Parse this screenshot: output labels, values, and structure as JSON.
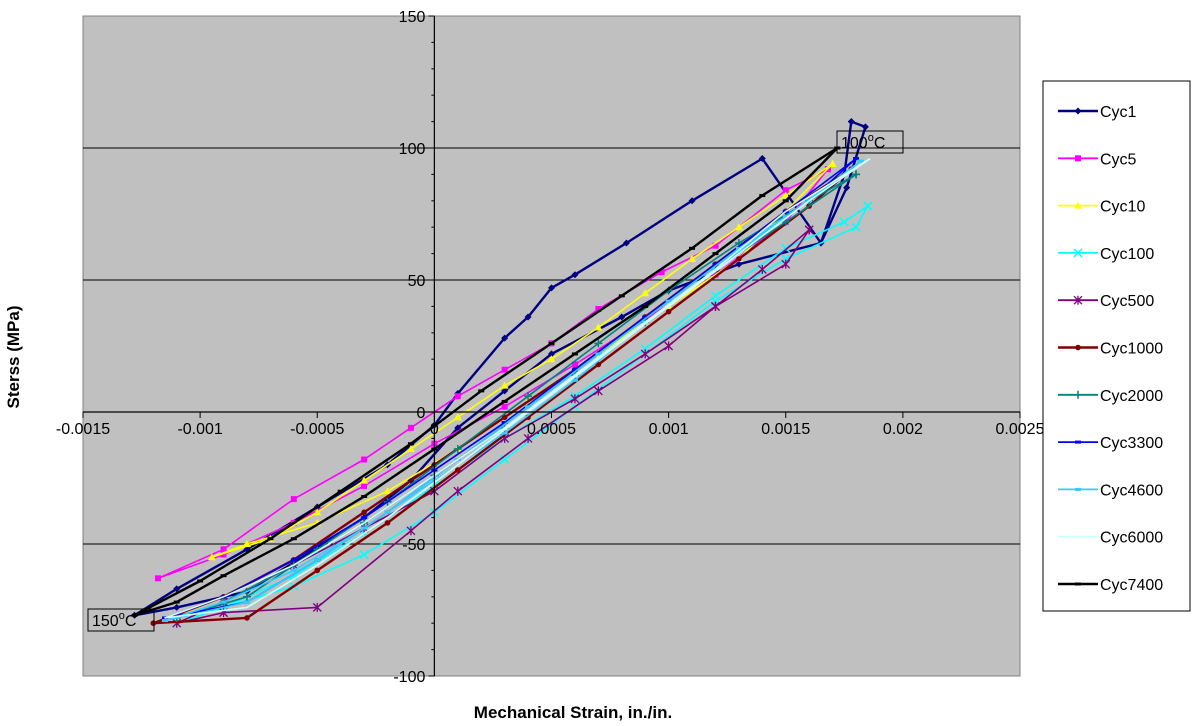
{
  "chart_data": {
    "type": "line",
    "xlabel": "Mechanical Strain, in./in.",
    "ylabel": "Sterss (MPa)",
    "xlim": [
      -0.0015,
      0.0025
    ],
    "ylim": [
      -100,
      150
    ],
    "xticks": [
      "-0.0015",
      "-0.001",
      "-0.0005",
      "0",
      "0.0005",
      "0.001",
      "0.0015",
      "0.002",
      "0.0025"
    ],
    "yticks": [
      "150",
      "100",
      "50",
      "0",
      "-50",
      "-100"
    ],
    "grid": true,
    "legend_position": "right",
    "plot_background": "#c0c0c0",
    "annotations": [
      {
        "label": "100",
        "sup": "o",
        "unit": "C",
        "x": 0.0018,
        "y": 104
      },
      {
        "label": "150",
        "sup": "o",
        "unit": "C",
        "x": -0.0013,
        "y": -79
      }
    ],
    "series": [
      {
        "name": "Cyc1",
        "color": "#000080",
        "marker": "diamond",
        "x": [
          0.00178,
          0.00184,
          0.00176,
          0.00165,
          0.0014,
          0.0011,
          0.00082,
          0.0006,
          0.0005,
          0.0004,
          0.0003,
          0.0001,
          0.0,
          -0.0002,
          -0.0005,
          -0.0008,
          -0.0011,
          -0.00128,
          -0.0011,
          -0.0008,
          -0.0006,
          -0.0003,
          -0.0001,
          0.0001,
          0.0003,
          0.0005,
          0.0008,
          0.001,
          0.0013,
          0.00165,
          0.00175,
          0.00178
        ],
        "y": [
          110,
          108,
          85,
          64,
          96,
          80,
          64,
          52,
          47,
          36,
          28,
          7,
          -5,
          -20,
          -36,
          -52,
          -67,
          -77,
          -74,
          -68,
          -57,
          -40,
          -26,
          -6,
          8,
          22,
          36,
          46,
          56,
          64,
          90,
          110
        ]
      },
      {
        "name": "Cyc5",
        "color": "#ff00ff",
        "marker": "square",
        "x": [
          0.00168,
          0.0015,
          0.0012,
          0.00097,
          0.0007,
          0.0005,
          0.0003,
          0.0001,
          -0.0001,
          -0.0003,
          -0.0006,
          -0.0009,
          -0.00118,
          -0.0009,
          -0.0006,
          -0.0003,
          0.0,
          0.0003,
          0.0006,
          0.0009,
          0.0012,
          0.0015,
          0.00168
        ],
        "y": [
          92,
          84,
          63,
          53,
          39,
          26,
          16,
          6,
          -6,
          -18,
          -33,
          -52,
          -63,
          -54,
          -42,
          -28,
          -12,
          2,
          18,
          35,
          52,
          72,
          92
        ]
      },
      {
        "name": "Cyc10",
        "color": "#ffff00",
        "marker": "triangle",
        "x": [
          0.0017,
          0.0015,
          0.0013,
          0.0011,
          0.0009,
          0.0007,
          0.0005,
          0.0003,
          0.0001,
          -0.0001,
          -0.0003,
          -0.0005,
          -0.0007,
          -0.00095,
          -0.0008,
          -0.0005,
          -0.0002,
          0.0001,
          0.0004,
          0.0007,
          0.001,
          0.0013,
          0.0017
        ],
        "y": [
          94,
          82,
          70,
          58,
          45,
          32,
          20,
          10,
          -2,
          -14,
          -26,
          -38,
          -48,
          -55,
          -50,
          -42,
          -30,
          -14,
          4,
          22,
          40,
          58,
          94
        ]
      },
      {
        "name": "Cyc100",
        "color": "#00ffff",
        "marker": "x",
        "x": [
          0.00185,
          0.0018,
          0.0015,
          0.0012,
          0.0009,
          0.0006,
          0.0003,
          0.0,
          -0.0003,
          -0.0006,
          -0.0009,
          -0.0011,
          -0.0009,
          -0.0006,
          -0.0003,
          0.0,
          0.0003,
          0.0006,
          0.0009,
          0.0012,
          0.0015,
          0.00175,
          0.00185
        ],
        "y": [
          78,
          70,
          58,
          42,
          22,
          2,
          -18,
          -38,
          -54,
          -66,
          -74,
          -80,
          -74,
          -62,
          -46,
          -28,
          -10,
          6,
          24,
          44,
          62,
          72,
          78
        ]
      },
      {
        "name": "Cyc500",
        "color": "#800080",
        "marker": "star",
        "x": [
          0.0016,
          0.0014,
          0.0012,
          0.001,
          0.0007,
          0.0004,
          0.0001,
          -0.0001,
          -0.0005,
          -0.0009,
          -0.0011,
          -0.0009,
          -0.0006,
          -0.0003,
          0.0,
          0.0003,
          0.0006,
          0.0009,
          0.0012,
          0.0015,
          0.0016
        ],
        "y": [
          69,
          54,
          40,
          25,
          8,
          -10,
          -30,
          -45,
          -74,
          -76,
          -80,
          -72,
          -58,
          -44,
          -30,
          -10,
          5,
          22,
          40,
          56,
          69
        ]
      },
      {
        "name": "Cyc1000",
        "color": "#800000",
        "marker": "circle",
        "x": [
          0.00178,
          0.0015,
          0.0012,
          0.0009,
          0.0006,
          0.0003,
          0.0,
          -0.0003,
          -0.0006,
          -0.0009,
          -0.0012,
          -0.0008,
          -0.0005,
          -0.0002,
          0.0001,
          0.0004,
          0.0007,
          0.001,
          0.0013,
          0.0016,
          0.00178
        ],
        "y": [
          92,
          76,
          56,
          36,
          16,
          -2,
          -20,
          -38,
          -56,
          -70,
          -80,
          -78,
          -60,
          -42,
          -22,
          -2,
          18,
          38,
          58,
          78,
          92
        ]
      },
      {
        "name": "Cyc2000",
        "color": "#008080",
        "marker": "plus",
        "x": [
          0.0018,
          0.0015,
          0.0012,
          0.0009,
          0.0006,
          0.0003,
          0.0,
          -0.0003,
          -0.0006,
          -0.0009,
          -0.0011,
          -0.0008,
          -0.0005,
          -0.0002,
          0.0001,
          0.0004,
          0.0007,
          0.001,
          0.0013,
          0.0016,
          0.0018
        ],
        "y": [
          90,
          72,
          54,
          34,
          14,
          -6,
          -24,
          -42,
          -58,
          -72,
          -78,
          -70,
          -52,
          -34,
          -14,
          6,
          26,
          46,
          64,
          80,
          90
        ]
      },
      {
        "name": "Cyc3300",
        "color": "#0000ff",
        "marker": "dash",
        "x": [
          0.0018,
          0.0015,
          0.0012,
          0.0009,
          0.0006,
          0.0003,
          0.0,
          -0.0003,
          -0.0006,
          -0.0009,
          -0.00115,
          -0.0008,
          -0.0005,
          -0.0002,
          0.0001,
          0.0004,
          0.0007,
          0.001,
          0.0013,
          0.0016,
          0.0018
        ],
        "y": [
          96,
          76,
          56,
          36,
          16,
          -4,
          -22,
          -40,
          -56,
          -70,
          -78,
          -72,
          -56,
          -38,
          -18,
          2,
          22,
          42,
          62,
          80,
          96
        ]
      },
      {
        "name": "Cyc4600",
        "color": "#33ccff",
        "marker": "dash",
        "x": [
          0.00182,
          0.0015,
          0.0012,
          0.0009,
          0.0006,
          0.0003,
          0.0,
          -0.0003,
          -0.0006,
          -0.0009,
          -0.00115,
          -0.0008,
          -0.0005,
          -0.0002,
          0.0001,
          0.0004,
          0.0007,
          0.001,
          0.0013,
          0.0016,
          0.00182
        ],
        "y": [
          95,
          74,
          54,
          34,
          12,
          -8,
          -26,
          -44,
          -60,
          -72,
          -79,
          -72,
          -56,
          -38,
          -18,
          2,
          22,
          42,
          62,
          80,
          95
        ]
      },
      {
        "name": "Cyc6000",
        "color": "#ccffff",
        "marker": "none",
        "x": [
          0.00186,
          0.0015,
          0.0012,
          0.0009,
          0.0006,
          0.0003,
          0.0,
          -0.0003,
          -0.0006,
          -0.0009,
          -0.00115,
          -0.0008,
          -0.0005,
          -0.0002,
          0.0001,
          0.0004,
          0.0007,
          0.001,
          0.0013,
          0.0016,
          0.00186
        ],
        "y": [
          96,
          76,
          54,
          34,
          14,
          -6,
          -24,
          -42,
          -58,
          -70,
          -78,
          -74,
          -58,
          -40,
          -20,
          0,
          20,
          40,
          60,
          80,
          96
        ]
      },
      {
        "name": "Cyc7400",
        "color": "#000000",
        "marker": "dash",
        "x": [
          0.00172,
          0.0015,
          0.0012,
          0.0009,
          0.0006,
          0.0003,
          0.0,
          -0.0003,
          -0.0006,
          -0.0009,
          -0.0011,
          -0.00128,
          -0.001,
          -0.0007,
          -0.0004,
          -0.0001,
          0.0002,
          0.0005,
          0.0008,
          0.0011,
          0.0014,
          0.00172
        ],
        "y": [
          100,
          80,
          60,
          40,
          22,
          4,
          -14,
          -32,
          -48,
          -62,
          -72,
          -77,
          -64,
          -48,
          -30,
          -12,
          8,
          26,
          44,
          62,
          82,
          100
        ]
      }
    ]
  }
}
